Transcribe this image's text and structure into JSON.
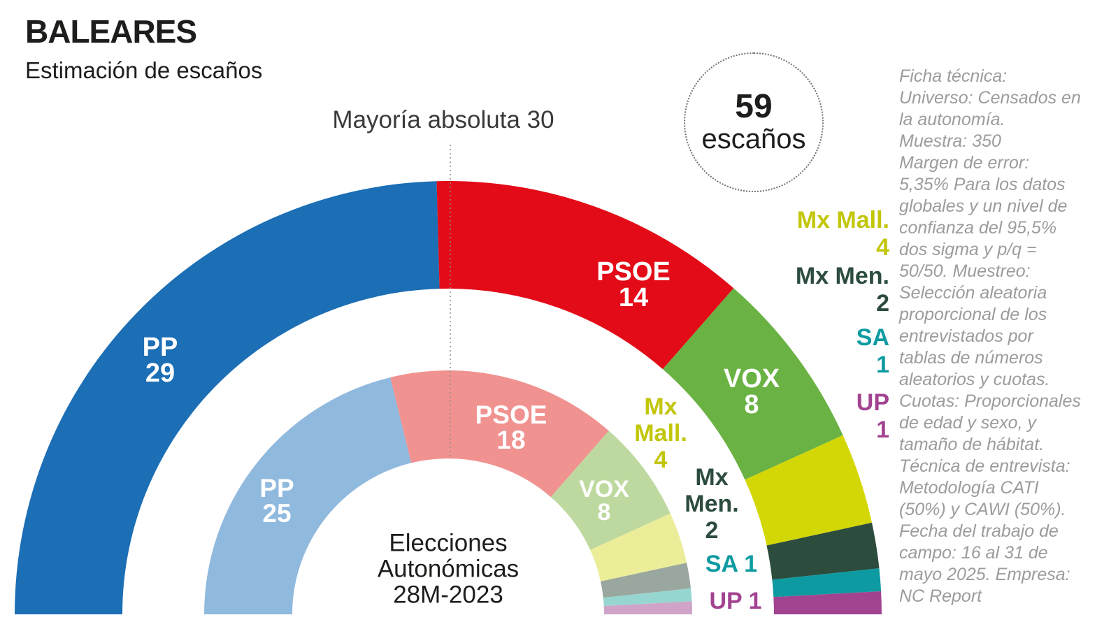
{
  "title": "BALEARES",
  "subtitle": "Estimación de escaños",
  "majority_label": "Mayoría absoluta 30",
  "badge": {
    "number": "59",
    "label": "escaños"
  },
  "center_caption": "Elecciones\nAutonómicas\n28M-2023",
  "ficha_tecnica": "Ficha técnica:\nUniverso: Censados en\nla autonomía.\nMuestra: 350\nMargen de error:\n5,35% Para los datos\nglobales y un nivel de\nconfianza del 95,5%\ndos sigma y p/q =\n50/50. Muestreo:\nSelección aleatoria\nproporcional de los\nentrevistados por\ntablas de números\naleatorios y cuotas.\nCuotas: Proporcionales\nde edad y sexo, y\ntamaño de hábitat.\nTécnica de entrevista:\nMetodología CATI\n(50%) y CAWI (50%).\nFecha del trabajo de\ncampo: 16 al 31 de\nmayo 2025. Empresa:\nNC Report",
  "chart_data": {
    "type": "hemicycle",
    "title": "BALEARES — Estimación de escaños",
    "total_seats": 59,
    "majority": 30,
    "majority_line_color": "#8c8c8c",
    "rings": [
      {
        "id": "estimation",
        "name": "Estimación de escaños (anillo exterior, 59 escaños)",
        "segments": [
          {
            "party": "PP",
            "seats": 29,
            "color": "#1c6eb5",
            "label_color": "#ffffff"
          },
          {
            "party": "PSOE",
            "seats": 14,
            "color": "#e30b17",
            "label_color": "#ffffff"
          },
          {
            "party": "VOX",
            "seats": 8,
            "color": "#6ab244",
            "label_color": "#ffffff"
          },
          {
            "party": "Mx Mall.",
            "seats": 4,
            "color": "#d4d706",
            "label_color": "#c2c609"
          },
          {
            "party": "Mx Men.",
            "seats": 2,
            "color": "#2c4c3e",
            "label_color": "#2c4c3e"
          },
          {
            "party": "SA",
            "seats": 1,
            "color": "#0d9ba1",
            "label_color": "#0d9ba1"
          },
          {
            "party": "UP",
            "seats": 1,
            "color": "#a24390",
            "label_color": "#a24390"
          }
        ]
      },
      {
        "id": "election-2023",
        "name": "Elecciones Autonómicas 28M-2023 (anillo interior, 59 escaños)",
        "segments": [
          {
            "party": "PP",
            "seats": 25,
            "color": "#90b9de",
            "label_color": "#ffffff"
          },
          {
            "party": "PSOE",
            "seats": 18,
            "color": "#f09290",
            "label_color": "#ffffff"
          },
          {
            "party": "VOX",
            "seats": 8,
            "color": "#bed99f",
            "label_color": "#ffffff"
          },
          {
            "party": "Mx Mall.",
            "seats": 4,
            "color": "#eced99",
            "label_color": "#c2c609"
          },
          {
            "party": "Mx Men.",
            "seats": 2,
            "color": "#9aa79e",
            "label_color": "#2c4c3e"
          },
          {
            "party": "SA",
            "seats": 1,
            "color": "#97d6d0",
            "label_color": "#0d9ba1"
          },
          {
            "party": "UP",
            "seats": 1,
            "color": "#cfa4c8",
            "label_color": "#a24390"
          }
        ]
      }
    ]
  }
}
